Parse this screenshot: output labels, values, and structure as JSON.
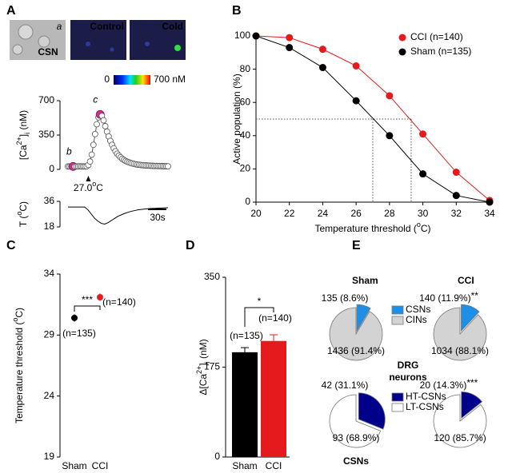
{
  "chart_data": [
    {
      "type": "line",
      "panel": "A",
      "image_labels": [
        "a",
        "CSN",
        "Control",
        "Cold"
      ],
      "colorbar": [
        "0",
        "700 nM"
      ],
      "y_label": [
        "[Ca",
        "2+",
        "]",
        "i",
        " (nM)"
      ],
      "ylim": [
        0,
        700
      ],
      "yticks": [
        0,
        350,
        700
      ],
      "markers": true,
      "color": "#555555",
      "values": [
        30,
        30,
        31,
        30,
        29,
        30,
        30,
        31,
        30,
        30,
        30,
        31,
        45,
        80,
        150,
        250,
        360,
        460,
        530,
        560,
        545,
        500,
        440,
        385,
        335,
        290,
        250,
        215,
        185,
        160,
        140,
        123,
        108,
        96,
        86,
        78,
        71,
        65,
        60,
        56,
        52,
        49,
        47,
        45,
        43,
        41,
        40,
        39,
        38,
        37,
        36,
        35,
        35,
        34,
        34,
        33,
        33,
        32,
        32,
        31
      ],
      "annotations": [
        "b",
        "c"
      ],
      "stimulus_label": [
        "27.0",
        "o",
        "C"
      ]
    },
    {
      "type": "line",
      "y_label": [
        "T (",
        "o",
        "C)"
      ],
      "ylim": [
        18,
        36
      ],
      "yticks": [
        18,
        36
      ],
      "markers": false,
      "color": "#000000",
      "values": [
        32,
        32,
        32,
        32,
        32,
        32,
        30,
        27,
        24,
        22,
        20.5,
        20,
        21,
        22.5,
        24,
        25.5,
        26.5,
        27.5,
        28.3,
        29,
        29.5,
        30,
        30.3,
        30.6,
        30.8,
        31,
        31.1,
        31.2,
        31.3,
        31.4,
        31.5
      ],
      "scale_bar": "30s"
    },
    {
      "type": "line",
      "panel": "B",
      "y_label": "Active population (%)",
      "x_label": [
        "Temperature threshold (",
        "o",
        "C)"
      ],
      "xlim": [
        20,
        34
      ],
      "xticks": [
        20,
        22,
        24,
        26,
        28,
        30,
        32,
        34
      ],
      "ylim": [
        0,
        100
      ],
      "yticks": [
        0,
        20,
        40,
        60,
        80,
        100
      ],
      "series": [
        {
          "name": "CCI (n=140)",
          "color": "#e41a1c",
          "x": [
            20,
            22,
            24,
            26,
            28,
            30,
            32,
            34
          ],
          "values": [
            100,
            99,
            92,
            82,
            64,
            41,
            18,
            1
          ]
        },
        {
          "name": "Sham (n=135)",
          "color": "#000000",
          "x": [
            20,
            22,
            24,
            26,
            28,
            30,
            32,
            34
          ],
          "values": [
            100,
            93,
            81,
            61,
            40,
            17,
            4,
            0
          ]
        }
      ],
      "threshold_lines": {
        "y": 50,
        "x": [
          27.0,
          29.3
        ]
      }
    },
    {
      "type": "scatter",
      "panel": "C",
      "y_label": [
        "Temperature threshold (",
        "o",
        "C)"
      ],
      "categories": [
        "Sham",
        "CCI"
      ],
      "values": [
        30.4,
        32.1
      ],
      "errors": [
        0.3,
        0.3
      ],
      "colors": [
        "#000000",
        "#e41a1c"
      ],
      "ylim": [
        19,
        34
      ],
      "yticks": [
        19,
        24,
        29,
        34
      ],
      "n_labels": [
        "(n=135)",
        "(n=140)"
      ],
      "significance": "***"
    },
    {
      "type": "bar",
      "panel": "D",
      "y_label": [
        "Δ[Ca",
        "2+",
        "]",
        "i",
        " (nM)"
      ],
      "categories": [
        "Sham",
        "CCI"
      ],
      "values": [
        204,
        226
      ],
      "errors": [
        9,
        12
      ],
      "colors": [
        "#000000",
        "#e41a1c"
      ],
      "ylim": [
        0,
        350
      ],
      "yticks": [
        0,
        175,
        350
      ],
      "n_labels": [
        "(n=135)",
        "(n=140)"
      ],
      "significance": "*"
    },
    {
      "type": "pie",
      "panel": "E",
      "titles": [
        "Sham",
        "CCI"
      ],
      "legend": [
        "CSNs",
        "CINs"
      ],
      "colors": [
        "#1e8fe6",
        "#d3d3d3"
      ],
      "pies": [
        {
          "values": [
            135,
            1436
          ],
          "value_labels": [
            "135 (8.6%)",
            "1436 (91.4%)"
          ]
        },
        {
          "values": [
            140,
            1034
          ],
          "value_labels": [
            "140 (11.9%)",
            "1034 (88.1%)"
          ],
          "significance": "**"
        }
      ],
      "label": [
        "DRG",
        "neurons"
      ]
    },
    {
      "type": "pie",
      "legend": [
        "HT-CSNs",
        "LT-CSNs"
      ],
      "colors": [
        "#00008b",
        "#ffffff"
      ],
      "pies": [
        {
          "values": [
            42,
            93
          ],
          "value_labels": [
            "42 (31.1%)",
            "93 (68.9%)"
          ]
        },
        {
          "values": [
            20,
            120
          ],
          "value_labels": [
            "20 (14.3%)",
            "120 (85.7%)"
          ],
          "significance": "***"
        }
      ],
      "label": "CSNs"
    }
  ]
}
